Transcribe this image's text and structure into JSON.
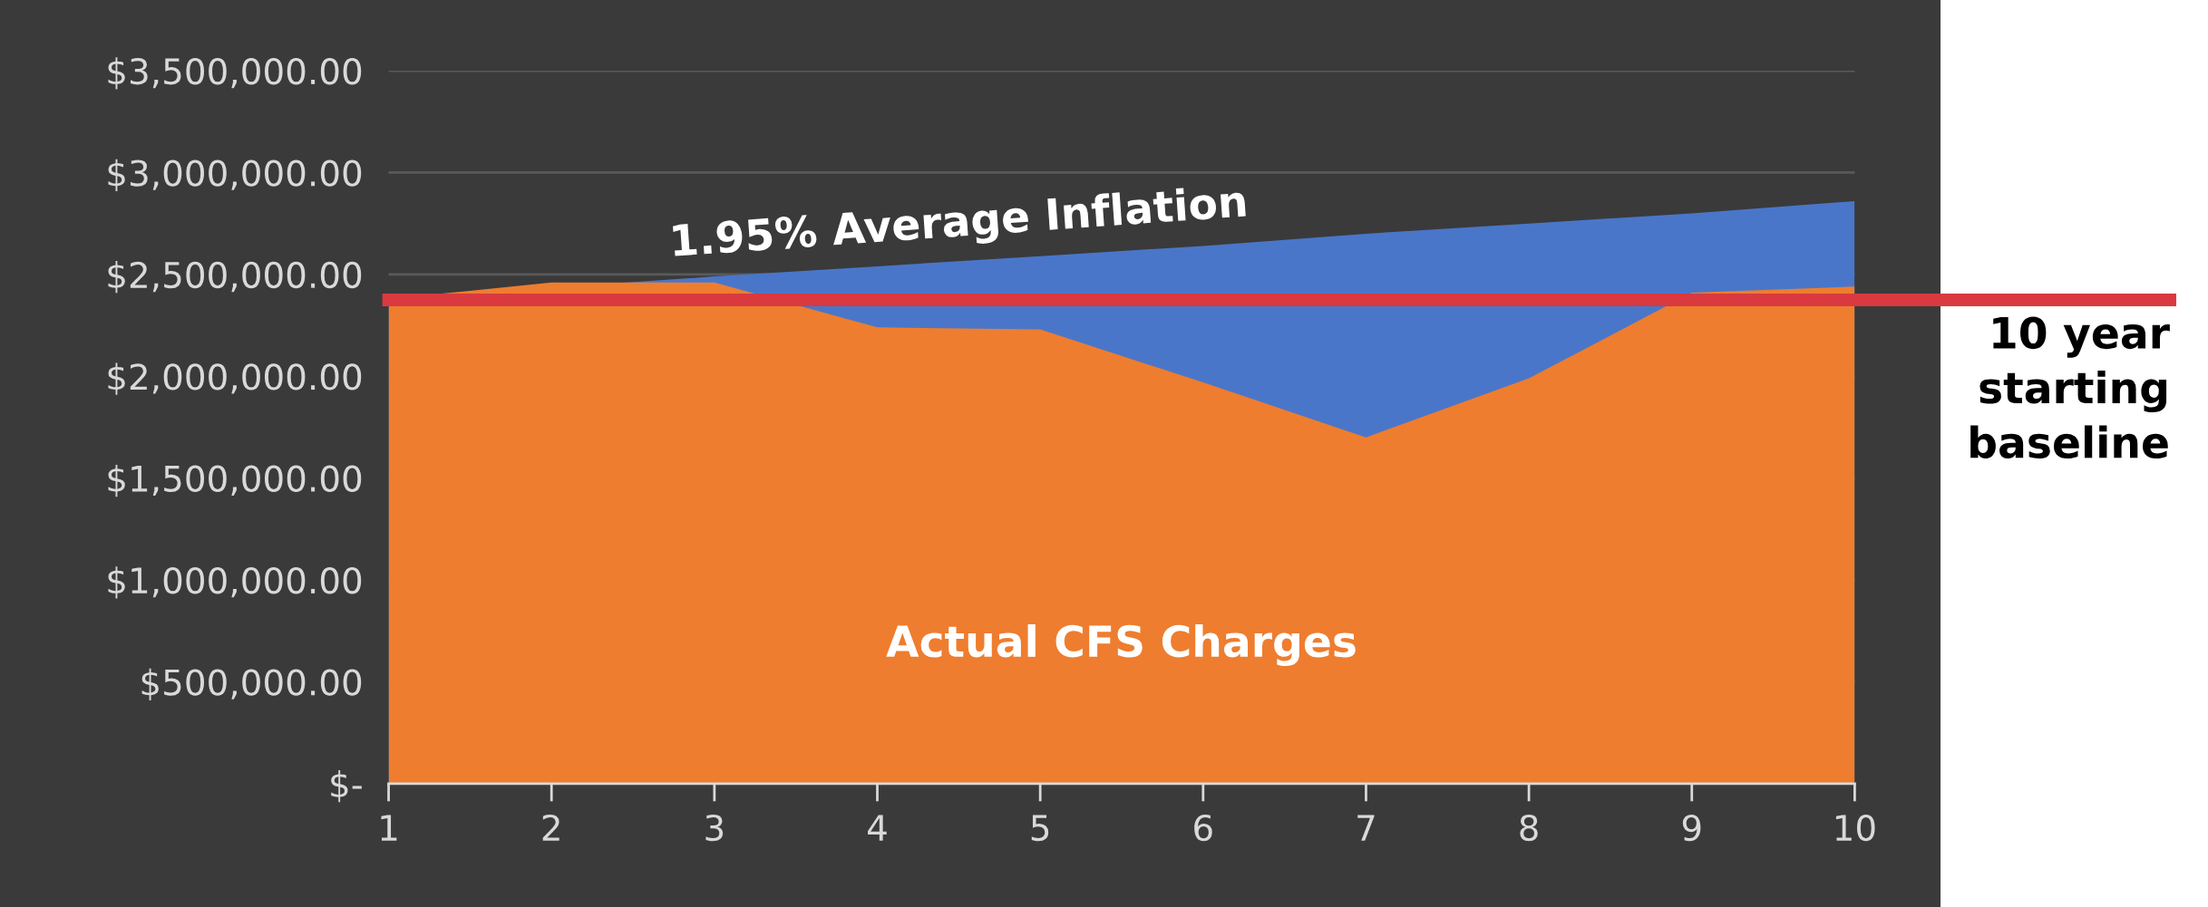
{
  "chart_data": {
    "type": "area",
    "x": [
      1,
      2,
      3,
      4,
      5,
      6,
      7,
      8,
      9,
      10
    ],
    "series": [
      {
        "name": "1.95% Average Inflation",
        "color": "#4a76c9",
        "values": [
          2380000,
          null,
          2490000,
          2540000,
          2590000,
          2640000,
          2700000,
          2750000,
          2800000,
          2860000
        ]
      },
      {
        "name": "Actual CFS Charges",
        "color": "#ee7d2f",
        "values": [
          2380000,
          2460000,
          2460000,
          2240000,
          2230000,
          1970000,
          1700000,
          1990000,
          2410000,
          2440000
        ]
      }
    ],
    "xlim": [
      1,
      10
    ],
    "xticks": [
      1,
      2,
      3,
      4,
      5,
      6,
      7,
      8,
      9,
      10
    ],
    "ylim": [
      0,
      3500000
    ],
    "yticks": [
      {
        "value": 0,
        "label": "$-"
      },
      {
        "value": 500000,
        "label": "$500,000.00"
      },
      {
        "value": 1000000,
        "label": "$1,000,000.00"
      },
      {
        "value": 1500000,
        "label": "$1,500,000.00"
      },
      {
        "value": 2000000,
        "label": "$2,000,000.00"
      },
      {
        "value": 2500000,
        "label": "$2,500,000.00"
      },
      {
        "value": 3000000,
        "label": "$3,000,000.00"
      },
      {
        "value": 3500000,
        "label": "$3,500,000.00"
      }
    ],
    "grid": "y",
    "ref_lines": [
      {
        "axis": "y",
        "value": 2375000,
        "label": "10 year\nstarting\nbaseline",
        "color": "#d9393f"
      }
    ]
  }
}
